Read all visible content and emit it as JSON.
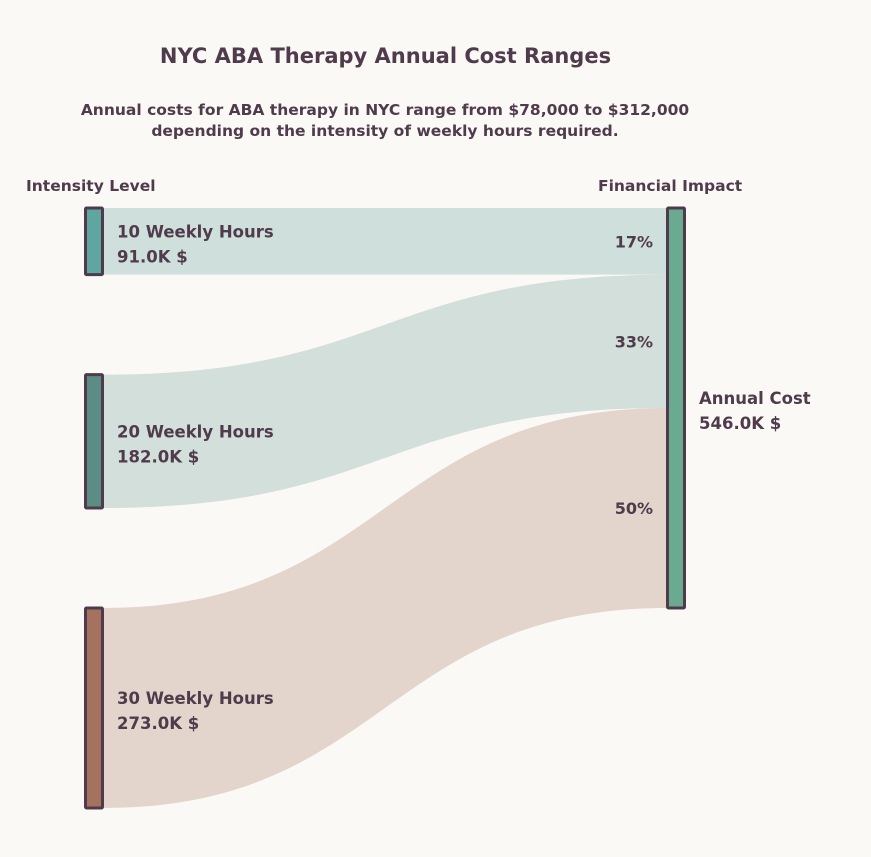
{
  "chart_data": {
    "type": "sankey",
    "title": "NYC ABA Therapy Annual Cost Ranges",
    "subtitle": "Annual costs for ABA therapy in NYC range from $78,000 to $312,000 depending on the intensity of weekly hours required.",
    "left_header": "Intensity Level",
    "right_header": "Financial Impact",
    "sources": [
      {
        "name": "10 Weekly Hours",
        "value": 91.0,
        "value_label": "91.0K $",
        "share_label": "17%",
        "color": "#5ea69f",
        "link_color": "#cfe0dc"
      },
      {
        "name": "20 Weekly Hours",
        "value": 182.0,
        "value_label": "182.0K $",
        "share_label": "33%",
        "color": "#5b8d84",
        "link_color": "#d2dfda"
      },
      {
        "name": "30 Weekly Hours",
        "value": 273.0,
        "value_label": "273.0K $",
        "share_label": "50%",
        "color": "#a4725e",
        "link_color": "#e3d5cb"
      }
    ],
    "target": {
      "name": "Annual Cost",
      "value": 546.0,
      "value_label": "546.0K $",
      "color": "#6aaa90"
    },
    "unit": "K $",
    "border_color": "#4f3b4c",
    "background": "#fbf9f5"
  }
}
